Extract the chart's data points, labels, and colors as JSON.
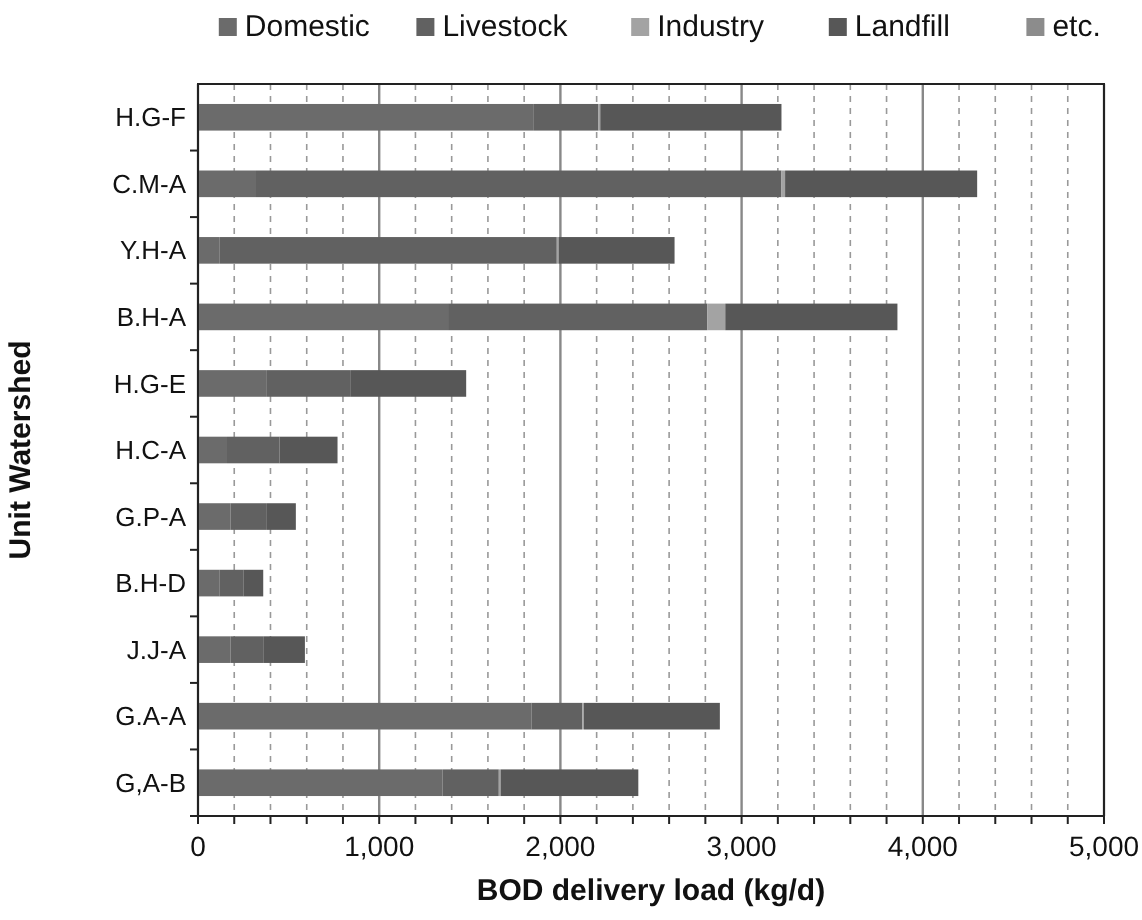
{
  "chart_data": {
    "type": "bar",
    "orientation": "horizontal",
    "stacked": true,
    "xlabel": "BOD delivery load (kg/d)",
    "ylabel": "Unit Watershed",
    "categories": [
      "H.G-F",
      "C.M-A",
      "Y.H-A",
      "B.H-A",
      "H.G-E",
      "H.C-A",
      "G.P-A",
      "B.H-D",
      "J.J-A",
      "G.A-A",
      "G,A-B"
    ],
    "series": [
      {
        "name": "Domestic",
        "color": "#6b6b6b",
        "values": [
          1850,
          320,
          120,
          1380,
          380,
          160,
          180,
          120,
          180,
          1840,
          1350
        ]
      },
      {
        "name": "Livestock",
        "color": "#616161",
        "values": [
          360,
          2900,
          1860,
          1430,
          460,
          290,
          200,
          130,
          180,
          280,
          310
        ]
      },
      {
        "name": "Industry",
        "color": "#a3a3a3",
        "values": [
          10,
          20,
          10,
          100,
          0,
          0,
          0,
          0,
          0,
          10,
          10
        ]
      },
      {
        "name": "Landfill",
        "color": "#575757",
        "values": [
          1000,
          1060,
          640,
          950,
          640,
          320,
          160,
          110,
          230,
          750,
          760
        ]
      },
      {
        "name": "etc.",
        "color": "#8c8c8c",
        "values": [
          0,
          0,
          0,
          0,
          0,
          0,
          0,
          0,
          0,
          0,
          0
        ]
      }
    ],
    "xlim": [
      0,
      5000
    ],
    "xticks": [
      {
        "value": 0,
        "label": "0"
      },
      {
        "value": 200,
        "label": null
      },
      {
        "value": 400,
        "label": null
      },
      {
        "value": 600,
        "label": null
      },
      {
        "value": 800,
        "label": null
      },
      {
        "value": 1000,
        "label": "1,000"
      },
      {
        "value": 1200,
        "label": null
      },
      {
        "value": 1400,
        "label": null
      },
      {
        "value": 1600,
        "label": null
      },
      {
        "value": 1800,
        "label": null
      },
      {
        "value": 2000,
        "label": "2,000"
      },
      {
        "value": 2200,
        "label": null
      },
      {
        "value": 2400,
        "label": null
      },
      {
        "value": 2600,
        "label": null
      },
      {
        "value": 2800,
        "label": null
      },
      {
        "value": 3000,
        "label": "3,000"
      },
      {
        "value": 3200,
        "label": null
      },
      {
        "value": 3400,
        "label": null
      },
      {
        "value": 3600,
        "label": null
      },
      {
        "value": 3800,
        "label": null
      },
      {
        "value": 4000,
        "label": "4,000"
      },
      {
        "value": 4200,
        "label": null
      },
      {
        "value": 4400,
        "label": null
      },
      {
        "value": 4600,
        "label": null
      },
      {
        "value": 4800,
        "label": null
      },
      {
        "value": 5000,
        "label": "5,000"
      }
    ],
    "grid": "x",
    "legend": "top"
  }
}
